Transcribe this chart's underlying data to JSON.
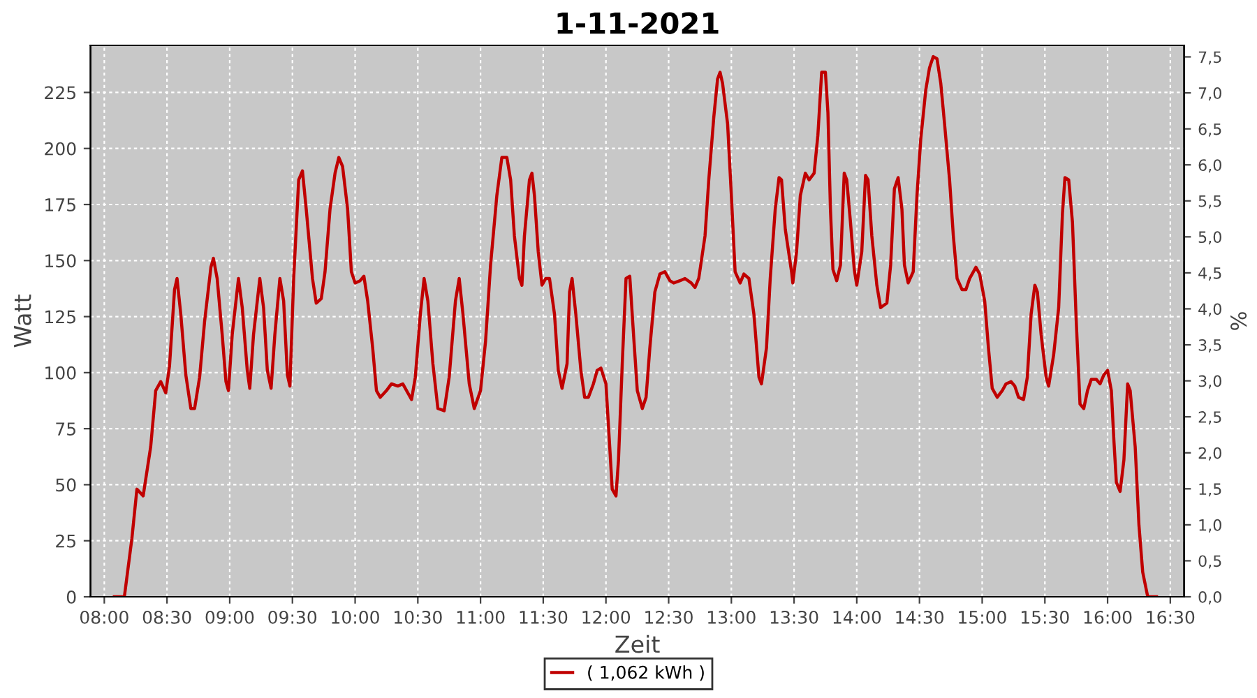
{
  "chart_data": {
    "type": "line",
    "title": "1-11-2021",
    "xlabel": "Zeit",
    "ylabel": "Watt",
    "y2label": "%",
    "xlim": [
      7.89,
      16.61
    ],
    "ylim": [
      0,
      246
    ],
    "y2lim": [
      0,
      7.66
    ],
    "xticks": [
      {
        "value": 8,
        "label": "08:00"
      },
      {
        "value": 8.5,
        "label": "08:30"
      },
      {
        "value": 9,
        "label": "09:00"
      },
      {
        "value": 9.5,
        "label": "09:30"
      },
      {
        "value": 10,
        "label": "10:00"
      },
      {
        "value": 10.5,
        "label": "10:30"
      },
      {
        "value": 11,
        "label": "11:00"
      },
      {
        "value": 11.5,
        "label": "11:30"
      },
      {
        "value": 12,
        "label": "12:00"
      },
      {
        "value": 12.5,
        "label": "12:30"
      },
      {
        "value": 13,
        "label": "13:00"
      },
      {
        "value": 13.5,
        "label": "13:30"
      },
      {
        "value": 14,
        "label": "14:00"
      },
      {
        "value": 14.5,
        "label": "14:30"
      },
      {
        "value": 15,
        "label": "15:00"
      },
      {
        "value": 15.5,
        "label": "15:30"
      },
      {
        "value": 16,
        "label": "16:00"
      },
      {
        "value": 16.5,
        "label": "16:30"
      }
    ],
    "yticks": [
      0,
      25,
      50,
      75,
      100,
      125,
      150,
      175,
      200,
      225
    ],
    "y2ticks": [
      {
        "value": 0,
        "label": "0,0"
      },
      {
        "value": 0.5,
        "label": "0,5"
      },
      {
        "value": 1,
        "label": "1,0"
      },
      {
        "value": 1.5,
        "label": "1,5"
      },
      {
        "value": 2,
        "label": "2,0"
      },
      {
        "value": 2.5,
        "label": "2,5"
      },
      {
        "value": 3,
        "label": "3,0"
      },
      {
        "value": 3.5,
        "label": "3,5"
      },
      {
        "value": 4,
        "label": "4,0"
      },
      {
        "value": 4.5,
        "label": "4,5"
      },
      {
        "value": 5,
        "label": "5,0"
      },
      {
        "value": 5.5,
        "label": "5,5"
      },
      {
        "value": 6,
        "label": "6,0"
      },
      {
        "value": 6.5,
        "label": "6,5"
      },
      {
        "value": 7,
        "label": "7,0"
      },
      {
        "value": 7.5,
        "label": "7,5"
      }
    ],
    "grid": true,
    "legend": "bottom",
    "marker": "none",
    "line_style": "solid",
    "series": [
      {
        "name": "( 1,062 kWh )",
        "color": "#c00000",
        "x": [
          8.08,
          8.16,
          8.22,
          8.26,
          8.31,
          8.37,
          8.41,
          8.45,
          8.49,
          8.52,
          8.56,
          8.58,
          8.61,
          8.65,
          8.69,
          8.72,
          8.76,
          8.8,
          8.85,
          8.87,
          8.9,
          8.94,
          8.97,
          8.99,
          9.02,
          9.07,
          9.1,
          9.14,
          9.16,
          9.19,
          9.24,
          9.27,
          9.3,
          9.33,
          9.36,
          9.4,
          9.43,
          9.46,
          9.48,
          9.51,
          9.55,
          9.58,
          9.61,
          9.66,
          9.69,
          9.73,
          9.76,
          9.8,
          9.84,
          9.87,
          9.9,
          9.94,
          9.97,
          10.0,
          10.04,
          10.07,
          10.1,
          10.14,
          10.17,
          10.2,
          10.25,
          10.29,
          10.34,
          10.38,
          10.43,
          10.45,
          10.48,
          10.52,
          10.55,
          10.58,
          10.62,
          10.66,
          10.71,
          10.75,
          10.8,
          10.83,
          10.86,
          10.91,
          10.95,
          11.0,
          11.04,
          11.08,
          11.13,
          11.17,
          11.21,
          11.24,
          11.27,
          11.31,
          11.33,
          11.35,
          11.39,
          11.41,
          11.43,
          11.46,
          11.49,
          11.52,
          11.55,
          11.59,
          11.62,
          11.65,
          11.69,
          11.71,
          11.73,
          11.76,
          11.8,
          11.83,
          11.86,
          11.9,
          11.93,
          11.96,
          12.0,
          12.03,
          12.05,
          12.08,
          12.1,
          12.13,
          12.16,
          12.19,
          12.22,
          12.25,
          12.29,
          12.32,
          12.35,
          12.39,
          12.43,
          12.47,
          12.51,
          12.54,
          12.59,
          12.63,
          12.68,
          12.71,
          12.74,
          12.79,
          12.82,
          12.86,
          12.89,
          12.91,
          12.93,
          12.97,
          13.0,
          13.03,
          13.07,
          13.1,
          13.14,
          13.18,
          13.22,
          13.24,
          13.28,
          13.31,
          13.35,
          13.38,
          13.4,
          13.43,
          13.48,
          13.49,
          13.52,
          13.55,
          13.59,
          13.62,
          13.66,
          13.69,
          13.72,
          13.75,
          13.77,
          13.79,
          13.81,
          13.84,
          13.87,
          13.9,
          13.92,
          13.95,
          13.98,
          14.0,
          14.04,
          14.07,
          14.09,
          14.12,
          14.16,
          14.19,
          14.24,
          14.27,
          14.3,
          14.33,
          14.36,
          14.38,
          14.41,
          14.45,
          14.48,
          14.51,
          14.55,
          14.58,
          14.61,
          14.64,
          14.67,
          14.7,
          14.74,
          14.77,
          14.8,
          14.84,
          14.87,
          14.9,
          14.95,
          14.98,
          15.02,
          15.05,
          15.08,
          15.12,
          15.16,
          15.19,
          15.23,
          15.26,
          15.29,
          15.33,
          15.36,
          15.39,
          15.42,
          15.44,
          15.47,
          15.51,
          15.53,
          15.57,
          15.61,
          15.64,
          15.66,
          15.69,
          15.72,
          15.75,
          15.78,
          15.81,
          15.84,
          15.87,
          15.91,
          15.94,
          15.97,
          16.0,
          16.03,
          16.05,
          16.07,
          16.1,
          16.13,
          16.16,
          16.18,
          16.22,
          16.25,
          16.28,
          16.32,
          16.39
        ],
        "values": [
          0,
          0,
          26,
          48,
          45,
          67,
          92,
          96,
          91,
          103,
          137,
          142,
          126,
          99,
          84,
          84,
          98,
          123,
          147,
          151,
          142,
          117,
          96,
          92,
          117,
          142,
          129,
          101,
          93,
          117,
          142,
          129,
          101,
          93,
          117,
          142,
          132,
          99,
          94,
          142,
          186,
          190,
          173,
          142,
          131,
          133,
          145,
          173,
          189,
          196,
          192,
          173,
          145,
          140,
          141,
          143,
          132,
          111,
          92,
          89,
          92,
          95,
          94,
          95,
          90,
          88,
          98,
          126,
          142,
          132,
          104,
          84,
          83,
          98,
          132,
          142,
          126,
          95,
          84,
          92,
          114,
          148,
          179,
          196,
          196,
          186,
          161,
          142,
          139,
          161,
          186,
          189,
          179,
          154,
          139,
          142,
          142,
          126,
          101,
          93,
          104,
          136,
          142,
          126,
          101,
          89,
          89,
          95,
          101,
          102,
          95,
          67,
          48,
          45,
          61,
          104,
          142,
          143,
          117,
          92,
          84,
          89,
          111,
          136,
          144,
          145,
          141,
          140,
          141,
          142,
          140,
          138,
          142,
          161,
          186,
          214,
          231,
          234,
          229,
          211,
          179,
          145,
          140,
          144,
          142,
          126,
          98,
          95,
          111,
          142,
          173,
          187,
          186,
          164,
          145,
          140,
          154,
          179,
          189,
          186,
          189,
          206,
          234,
          234,
          216,
          173,
          146,
          141,
          148,
          189,
          186,
          167,
          146,
          139,
          154,
          188,
          186,
          161,
          139,
          129,
          131,
          148,
          182,
          187,
          173,
          148,
          140,
          145,
          179,
          204,
          226,
          236,
          241,
          240,
          229,
          211,
          186,
          161,
          142,
          137,
          137,
          142,
          147,
          144,
          132,
          111,
          93,
          89,
          92,
          95,
          96,
          94,
          89,
          88,
          98,
          126,
          139,
          136,
          117,
          98,
          94,
          108,
          129,
          171,
          187,
          186,
          167,
          123,
          86,
          84,
          92,
          97,
          97,
          95,
          99,
          101,
          92,
          70,
          51,
          47,
          61,
          95,
          92,
          67,
          32,
          11,
          0,
          0
        ]
      }
    ]
  }
}
